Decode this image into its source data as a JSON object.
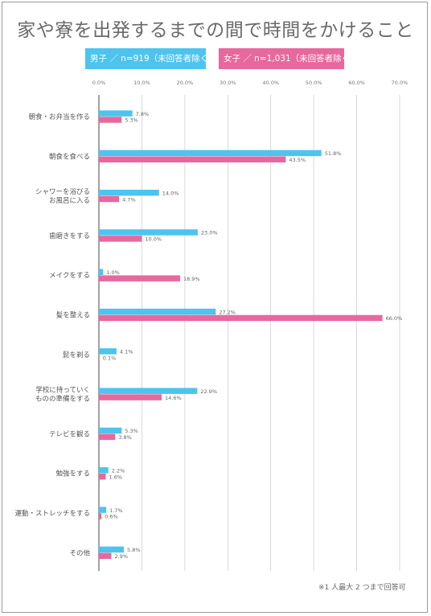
{
  "chart_data": {
    "type": "bar",
    "orientation": "horizontal",
    "title": "家や寮を出発するまでの間で時間をかけること",
    "categories": [
      "朝食・お弁当を作る",
      "朝食を食べる",
      "シャワーを浴びる\nお風呂に入る",
      "歯磨きをする",
      "メイクをする",
      "髪を整える",
      "髭を剃る",
      "学校に持っていく\nものの準備をする",
      "テレビを観る",
      "勉強をする",
      "運動・ストレッチをする",
      "その他"
    ],
    "series": [
      {
        "name": "男子 ／ n=919（未回答者除く）",
        "color": "#4dc4ee",
        "values": [
          7.8,
          51.8,
          14.0,
          23.0,
          1.0,
          27.2,
          4.1,
          22.9,
          5.3,
          2.2,
          1.7,
          5.8
        ],
        "labels": [
          "7.8%",
          "51.8%",
          "14.0%",
          "23.0%",
          "1.0%",
          "27.2%",
          "4.1%",
          "22.9%",
          "5.3%",
          "2.2%",
          "1.7%",
          "5.8%"
        ]
      },
      {
        "name": "女子 ／ n=1,031（未回答者除く）",
        "color": "#e8689e",
        "values": [
          5.3,
          43.5,
          4.7,
          10.0,
          18.9,
          66.0,
          0.1,
          14.6,
          3.8,
          1.6,
          0.6,
          2.9
        ],
        "labels": [
          "5.3%",
          "43.5%",
          "4.7%",
          "10.0%",
          "18.9%",
          "66.0%",
          "0.1%",
          "14.6%",
          "3.8%",
          "1.6%",
          "0.6%",
          "2.9%"
        ]
      }
    ],
    "x_ticks": [
      "0.0%",
      "10.0%",
      "20.0%",
      "30.0%",
      "40.0%",
      "50.0%",
      "60.0%",
      "70.0%"
    ],
    "xlim": [
      0,
      70
    ],
    "grid": true,
    "legend_position": "top",
    "note": "※1 人最大 2 つまで回答可"
  }
}
